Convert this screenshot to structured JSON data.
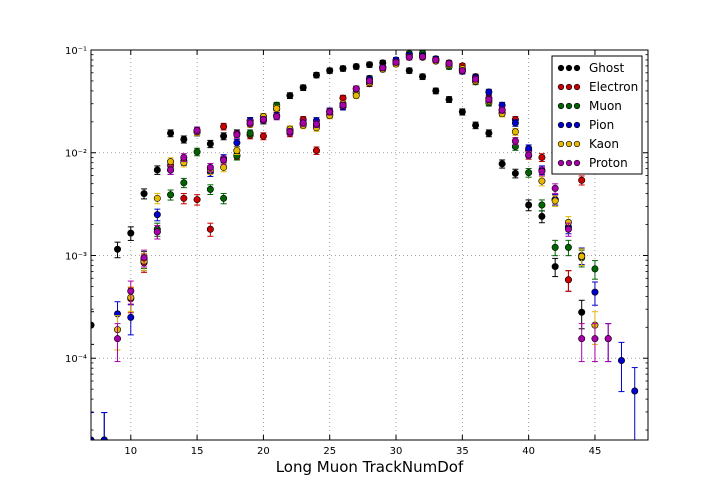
{
  "chart_data": {
    "type": "scatter",
    "title": "",
    "xlabel": "Long Muon TrackNumDof",
    "ylabel": "",
    "xlim": [
      7,
      49
    ],
    "ylim": [
      1.6e-05,
      0.1
    ],
    "yscale": "log",
    "grid": true,
    "legend_position": "top-right",
    "x_ticks": [
      10,
      15,
      20,
      25,
      30,
      35,
      40,
      45
    ],
    "x_tick_labels": [
      "10",
      "15",
      "20",
      "25",
      "30",
      "35",
      "40",
      "45"
    ],
    "y_ticks": [
      0.0001,
      0.001,
      0.01,
      0.1
    ],
    "y_tick_labels": [
      "10⁻⁴",
      "10⁻³",
      "10⁻²",
      "10⁻¹"
    ],
    "series": [
      {
        "name": "Ghost",
        "color": "#000000",
        "points": [
          [
            7,
            0.00021
          ],
          [
            8,
            1.6e-05
          ],
          [
            9,
            0.00115
          ],
          [
            10,
            0.00165
          ],
          [
            11,
            0.004
          ],
          [
            12,
            0.0068
          ],
          [
            13,
            0.0155
          ],
          [
            14,
            0.0135
          ],
          [
            15,
            0.0158
          ],
          [
            16,
            0.0122
          ],
          [
            17,
            0.0145
          ],
          [
            18,
            0.0155
          ],
          [
            19,
            0.0205
          ],
          [
            20,
            0.0225
          ],
          [
            21,
            0.0285
          ],
          [
            22,
            0.036
          ],
          [
            23,
            0.043
          ],
          [
            24,
            0.057
          ],
          [
            25,
            0.063
          ],
          [
            26,
            0.066
          ],
          [
            27,
            0.069
          ],
          [
            28,
            0.072
          ],
          [
            29,
            0.075
          ],
          [
            30,
            0.076
          ],
          [
            31,
            0.063
          ],
          [
            32,
            0.055
          ],
          [
            33,
            0.04
          ],
          [
            34,
            0.033
          ],
          [
            35,
            0.025
          ],
          [
            36,
            0.0185
          ],
          [
            37,
            0.0155
          ],
          [
            38,
            0.0078
          ],
          [
            39,
            0.0063
          ],
          [
            40,
            0.0031
          ],
          [
            41,
            0.0024
          ],
          [
            42,
            0.00078
          ],
          [
            43,
            0.00058
          ],
          [
            44,
            0.00028
          ]
        ]
      },
      {
        "name": "Electron",
        "color": "#cc0000",
        "points": [
          [
            10,
            0.00038
          ],
          [
            11,
            0.00085
          ],
          [
            12,
            0.0017
          ],
          [
            13,
            0.0075
          ],
          [
            14,
            0.0036
          ],
          [
            15,
            0.0035
          ],
          [
            16,
            0.0018
          ],
          [
            17,
            0.018
          ],
          [
            18,
            0.0095
          ],
          [
            19,
            0.0148
          ],
          [
            20,
            0.0145
          ],
          [
            21,
            0.0265
          ],
          [
            22,
            0.0155
          ],
          [
            23,
            0.021
          ],
          [
            24,
            0.0105
          ],
          [
            25,
            0.025
          ],
          [
            26,
            0.034
          ],
          [
            27,
            0.038
          ],
          [
            28,
            0.047
          ],
          [
            29,
            0.068
          ],
          [
            30,
            0.075
          ],
          [
            31,
            0.09
          ],
          [
            32,
            0.09
          ],
          [
            33,
            0.08
          ],
          [
            34,
            0.075
          ],
          [
            35,
            0.07
          ],
          [
            36,
            0.055
          ],
          [
            37,
            0.034
          ],
          [
            38,
            0.026
          ],
          [
            39,
            0.021
          ],
          [
            40,
            0.0105
          ],
          [
            41,
            0.009
          ],
          [
            42,
            0.0035
          ],
          [
            43,
            0.00058
          ],
          [
            44,
            0.0054
          ]
        ]
      },
      {
        "name": "Muon",
        "color": "#006400",
        "points": [
          [
            11,
            0.00092
          ],
          [
            12,
            0.0018
          ],
          [
            13,
            0.0039
          ],
          [
            14,
            0.0051
          ],
          [
            15,
            0.0102
          ],
          [
            16,
            0.0044
          ],
          [
            17,
            0.0036
          ],
          [
            18,
            0.0093
          ],
          [
            19,
            0.0155
          ],
          [
            20,
            0.0205
          ],
          [
            21,
            0.029
          ],
          [
            22,
            0.0165
          ],
          [
            23,
            0.019
          ],
          [
            24,
            0.0185
          ],
          [
            25,
            0.0235
          ],
          [
            26,
            0.028
          ],
          [
            27,
            0.039
          ],
          [
            28,
            0.053
          ],
          [
            29,
            0.068
          ],
          [
            30,
            0.078
          ],
          [
            31,
            0.092
          ],
          [
            32,
            0.093
          ],
          [
            33,
            0.082
          ],
          [
            34,
            0.069
          ],
          [
            35,
            0.064
          ],
          [
            36,
            0.049
          ],
          [
            37,
            0.0305
          ],
          [
            38,
            0.0245
          ],
          [
            39,
            0.0115
          ],
          [
            40,
            0.0064
          ],
          [
            41,
            0.0031
          ],
          [
            42,
            0.0012
          ],
          [
            43,
            0.0012
          ],
          [
            44,
            0.00095
          ],
          [
            45,
            0.00074
          ]
        ]
      },
      {
        "name": "Pion",
        "color": "#0000cc",
        "points": [
          [
            7,
            1.6e-05
          ],
          [
            8,
            1.6e-05
          ],
          [
            9,
            0.00027
          ],
          [
            10,
            0.00025
          ],
          [
            11,
            0.00088
          ],
          [
            12,
            0.0025
          ],
          [
            13,
            0.0068
          ],
          [
            14,
            0.0083
          ],
          [
            15,
            0.0165
          ],
          [
            16,
            0.0065
          ],
          [
            17,
            0.0088
          ],
          [
            18,
            0.0125
          ],
          [
            19,
            0.0205
          ],
          [
            20,
            0.021
          ],
          [
            21,
            0.023
          ],
          [
            22,
            0.0165
          ],
          [
            23,
            0.0195
          ],
          [
            24,
            0.0205
          ],
          [
            25,
            0.0255
          ],
          [
            26,
            0.028
          ],
          [
            27,
            0.042
          ],
          [
            28,
            0.052
          ],
          [
            29,
            0.068
          ],
          [
            30,
            0.08
          ],
          [
            31,
            0.089
          ],
          [
            32,
            0.088
          ],
          [
            33,
            0.082
          ],
          [
            34,
            0.074
          ],
          [
            35,
            0.062
          ],
          [
            36,
            0.054
          ],
          [
            37,
            0.039
          ],
          [
            38,
            0.029
          ],
          [
            39,
            0.0195
          ],
          [
            40,
            0.011
          ],
          [
            41,
            0.0068
          ],
          [
            42,
            0.0035
          ],
          [
            43,
            0.0019
          ],
          [
            44,
            0.001
          ],
          [
            45,
            0.00044
          ],
          [
            46,
            0.000155
          ],
          [
            47,
            9.5e-05
          ],
          [
            48,
            4.8e-05
          ]
        ]
      },
      {
        "name": "Kaon",
        "color": "#e6b800",
        "points": [
          [
            9,
            0.00019
          ],
          [
            10,
            0.00039
          ],
          [
            11,
            0.00088
          ],
          [
            12,
            0.0036
          ],
          [
            13,
            0.0082
          ],
          [
            14,
            0.008
          ],
          [
            15,
            0.016
          ],
          [
            16,
            0.0068
          ],
          [
            17,
            0.0072
          ],
          [
            18,
            0.0105
          ],
          [
            19,
            0.019
          ],
          [
            20,
            0.0225
          ],
          [
            21,
            0.027
          ],
          [
            22,
            0.017
          ],
          [
            23,
            0.0185
          ],
          [
            24,
            0.0175
          ],
          [
            25,
            0.023
          ],
          [
            26,
            0.03
          ],
          [
            27,
            0.036
          ],
          [
            28,
            0.048
          ],
          [
            29,
            0.065
          ],
          [
            30,
            0.073
          ],
          [
            31,
            0.085
          ],
          [
            32,
            0.085
          ],
          [
            33,
            0.078
          ],
          [
            34,
            0.072
          ],
          [
            35,
            0.066
          ],
          [
            36,
            0.05
          ],
          [
            37,
            0.032
          ],
          [
            38,
            0.024
          ],
          [
            39,
            0.016
          ],
          [
            40,
            0.0094
          ],
          [
            41,
            0.0053
          ],
          [
            42,
            0.0034
          ],
          [
            43,
            0.0021
          ],
          [
            44,
            0.00098
          ],
          [
            45,
            0.00021
          ]
        ]
      },
      {
        "name": "Proton",
        "color": "#aa00aa",
        "points": [
          [
            9,
            0.000155
          ],
          [
            10,
            0.00045
          ],
          [
            11,
            0.00095
          ],
          [
            12,
            0.0017
          ],
          [
            13,
            0.0068
          ],
          [
            14,
            0.009
          ],
          [
            15,
            0.0165
          ],
          [
            16,
            0.0072
          ],
          [
            17,
            0.0085
          ],
          [
            18,
            0.015
          ],
          [
            19,
            0.0195
          ],
          [
            20,
            0.021
          ],
          [
            21,
            0.0225
          ],
          [
            22,
            0.016
          ],
          [
            23,
            0.0195
          ],
          [
            24,
            0.019
          ],
          [
            25,
            0.025
          ],
          [
            26,
            0.029
          ],
          [
            27,
            0.042
          ],
          [
            28,
            0.05
          ],
          [
            29,
            0.067
          ],
          [
            30,
            0.076
          ],
          [
            31,
            0.085
          ],
          [
            32,
            0.086
          ],
          [
            33,
            0.08
          ],
          [
            34,
            0.074
          ],
          [
            35,
            0.063
          ],
          [
            36,
            0.052
          ],
          [
            37,
            0.033
          ],
          [
            38,
            0.026
          ],
          [
            39,
            0.013
          ],
          [
            40,
            0.0095
          ],
          [
            41,
            0.0066
          ],
          [
            42,
            0.0045
          ],
          [
            43,
            0.0018
          ],
          [
            44,
            0.000155
          ],
          [
            45,
            0.000155
          ],
          [
            46,
            0.000155
          ]
        ]
      }
    ]
  }
}
